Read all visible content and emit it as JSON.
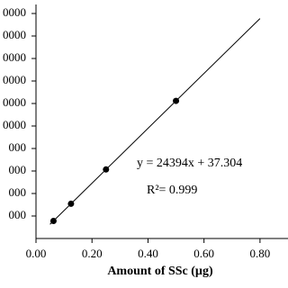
{
  "chart_data": {
    "type": "scatter",
    "x_label": "Amount of SSc (µg)",
    "annotations": [
      "y = 24394x + 37.304",
      "R²= 0.999"
    ],
    "series": [
      {
        "color": "#000000",
        "x": [
          0.0625,
          0.125,
          0.25,
          0.5
        ],
        "values": [
          1562,
          3086,
          6136,
          12234
        ]
      }
    ],
    "trendline": true,
    "xlim": [
      0,
      0.9
    ],
    "xticks": [
      {
        "value": 0,
        "label": "0.00"
      },
      {
        "value": 0.2,
        "label": "0.20"
      },
      {
        "value": 0.4,
        "label": "0.40"
      },
      {
        "value": 0.6,
        "label": "0.60"
      },
      {
        "value": 0.8,
        "label": "0.80"
      }
    ],
    "ylim": [
      0,
      20800
    ],
    "yticks": [
      {
        "value": 2000,
        "label": "000"
      },
      {
        "value": 4000,
        "label": "000"
      },
      {
        "value": 6000,
        "label": "000"
      },
      {
        "value": 8000,
        "label": "000"
      },
      {
        "value": 10000,
        "label": "0000"
      },
      {
        "value": 12000,
        "label": "0000"
      },
      {
        "value": 14000,
        "label": "0000"
      },
      {
        "value": 16000,
        "label": "0000"
      },
      {
        "value": 18000,
        "label": "0000"
      },
      {
        "value": 20000,
        "label": "0000"
      }
    ]
  }
}
